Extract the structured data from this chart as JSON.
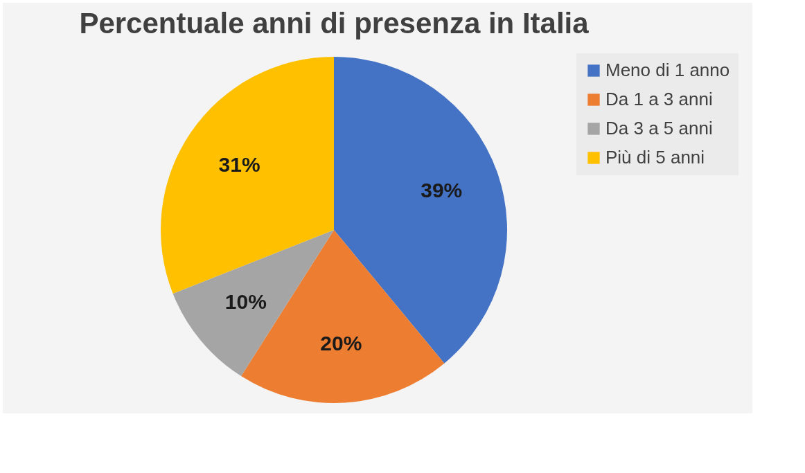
{
  "chart_data": {
    "type": "pie",
    "title": "Percentuale anni di presenza in Italia",
    "categories": [
      "Meno di 1 anno",
      "Da 1 a 3 anni",
      "Da 3 a 5 anni",
      "Più di 5 anni"
    ],
    "values": [
      39,
      20,
      10,
      31
    ],
    "colors": [
      "#4472c4",
      "#ed7d31",
      "#a5a5a5",
      "#ffc000"
    ],
    "value_labels": [
      "39%",
      "20%",
      "10%",
      "31%"
    ],
    "legend": "right"
  }
}
